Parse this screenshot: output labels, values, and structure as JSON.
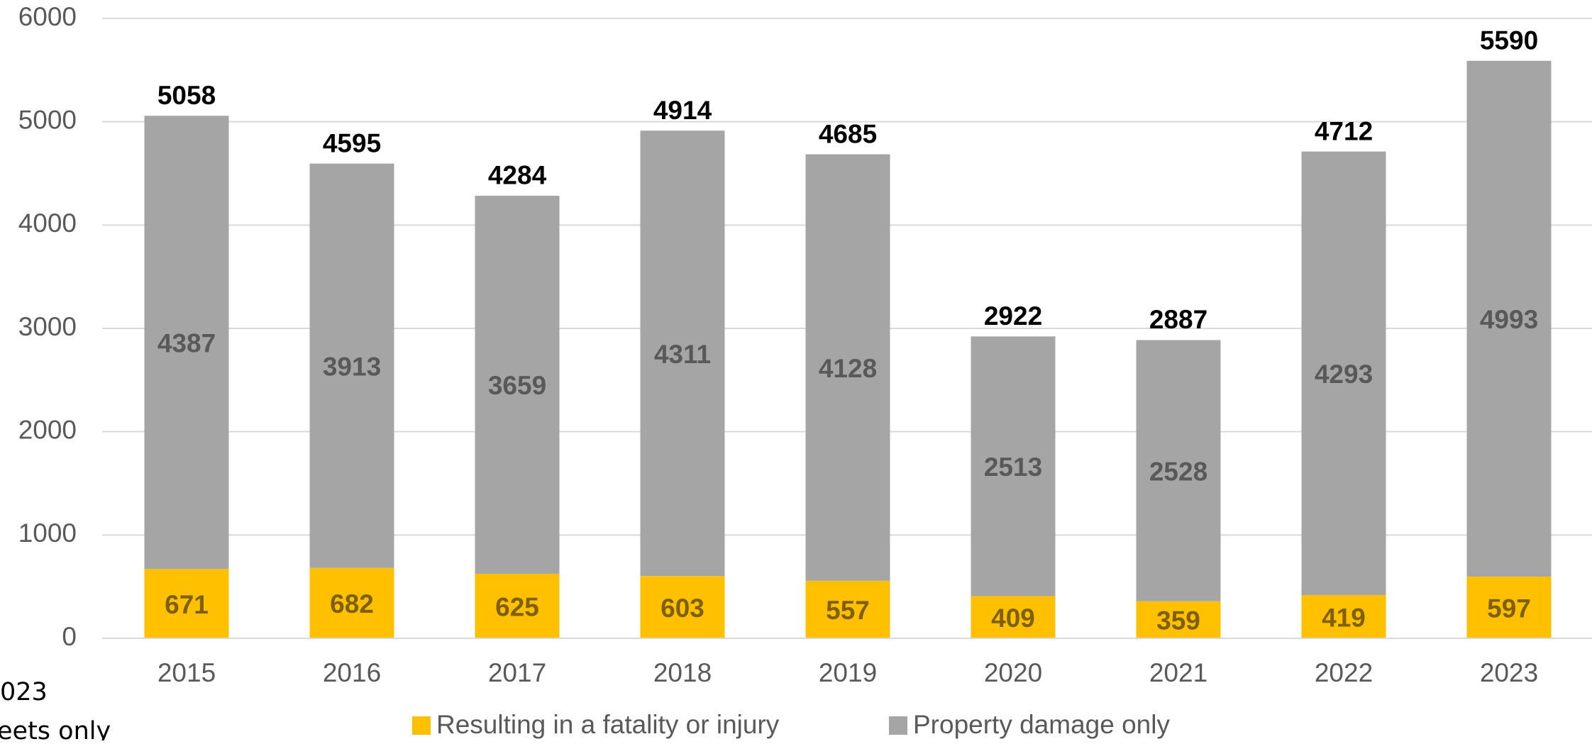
{
  "chart_data": {
    "type": "stacked_bar",
    "categories": [
      "2015",
      "2016",
      "2017",
      "2018",
      "2019",
      "2020",
      "2021",
      "2022",
      "2023"
    ],
    "series": [
      {
        "name": "Resulting in a fatality or injury",
        "color": "#FFC000",
        "label_color": "#7f6000",
        "values": [
          671,
          682,
          625,
          603,
          557,
          409,
          359,
          419,
          597
        ]
      },
      {
        "name": "Property damage only",
        "color": "#A5A5A5",
        "label_color": "#595959",
        "values": [
          4387,
          3913,
          3659,
          4311,
          4128,
          2513,
          2528,
          4293,
          4993
        ]
      }
    ],
    "totals": [
      5058,
      4595,
      4284,
      4914,
      4685,
      2922,
      2887,
      4712,
      5590
    ],
    "ylim": [
      0,
      6000
    ],
    "yticks": [
      0,
      1000,
      2000,
      3000,
      4000,
      5000,
      6000
    ],
    "grid": true,
    "legend": "bottom",
    "notes": [
      "023",
      "eets only"
    ]
  }
}
